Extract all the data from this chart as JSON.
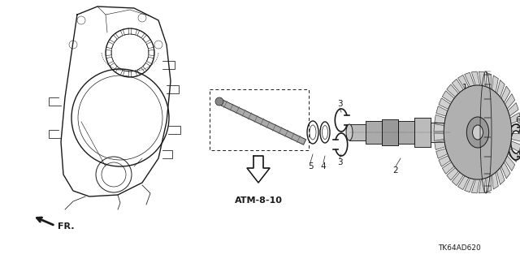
{
  "bg_color": "#ffffff",
  "line_color": "#1a1a1a",
  "diagram_code": "TK64AD620",
  "fr_label": "FR.",
  "atm_label": "ATM-8-10"
}
